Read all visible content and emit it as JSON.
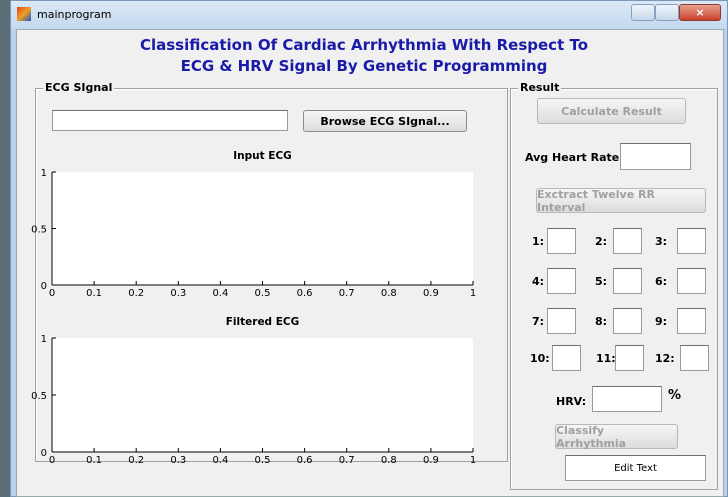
{
  "window": {
    "title": "mainprogram"
  },
  "header": {
    "title_lines": [
      "Classification Of Cardiac Arrhythmia With Respect To",
      "ECG & HRV Signal By Genetic Programming"
    ]
  },
  "ecg_panel": {
    "label": "ECG SIgnal",
    "browse_button": "Browse ECG SIgnal...",
    "plots": [
      {
        "title": "Input ECG",
        "xlim": [
          0,
          1
        ],
        "ylim": [
          0,
          1
        ],
        "xticks": [
          0,
          0.1,
          0.2,
          0.3,
          0.4,
          0.5,
          0.6,
          0.7,
          0.8,
          0.9,
          1
        ],
        "yticks": [
          0,
          0.5,
          1
        ]
      },
      {
        "title": "Filtered ECG",
        "xlim": [
          0,
          1
        ],
        "ylim": [
          0,
          1
        ],
        "xticks": [
          0,
          0.1,
          0.2,
          0.3,
          0.4,
          0.5,
          0.6,
          0.7,
          0.8,
          0.9,
          1
        ],
        "yticks": [
          0,
          0.5,
          1
        ]
      }
    ]
  },
  "result_panel": {
    "label": "Result",
    "calculate_button": "Calculate Result",
    "avg_heart_rate_label": "Avg Heart Rate:",
    "extract_button": "Exctract Twelve RR Interval",
    "rr_labels": [
      "1:",
      "2:",
      "3:",
      "4:",
      "5:",
      "6:",
      "7:",
      "8:",
      "9:",
      "10:",
      "11:",
      "12:"
    ],
    "hrv_label": "HRV:",
    "hrv_unit": "%",
    "classify_button": "Classify Arrhythmia",
    "edit_text": "Edit Text"
  }
}
